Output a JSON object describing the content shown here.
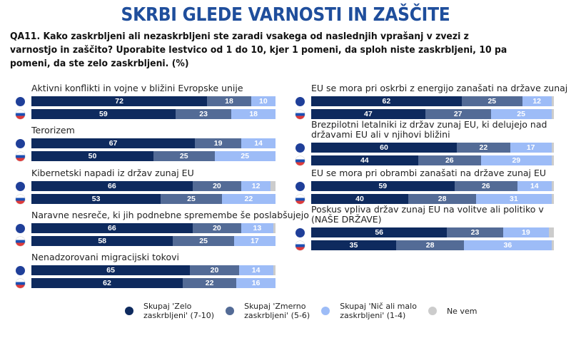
{
  "title": "SKRBI GLEDE VARNOSTI IN ZAŠČITE",
  "question": "QA11. Kako zaskrbljeni ali nezaskrbljeni ste zaradi vsakega od naslednjih vprašanj v zvezi z varnostjo in zaščito? Uporabite lestvico od 1 do 10, kjer 1 pomeni, da sploh niste zaskrbljeni, 10 pa pomeni, da ste zelo zaskrbljeni. (%)",
  "colors": {
    "very": "#0e2a5e",
    "moderate": "#536b96",
    "little": "#9dbcf7",
    "dontknow": "#cccccc"
  },
  "legend": [
    {
      "key": "very",
      "label_1": "Skupaj 'Zelo",
      "label_2": "zaskrbljeni' (7-10)"
    },
    {
      "key": "moderate",
      "label_1": "Skupaj 'Zmerno",
      "label_2": "zaskrbljeni' (5-6)"
    },
    {
      "key": "little",
      "label_1": "Skupaj 'Nič ali malo",
      "label_2": "zaskrbljeni' (1-4)"
    },
    {
      "key": "dontknow",
      "label_1": "Ne vem",
      "label_2": ""
    }
  ],
  "chart_data": {
    "type": "bar",
    "stacked": true,
    "orientation": "horizontal",
    "title": "SKRBI GLEDE VARNOSTI IN ZAŠČITE",
    "series_names": [
      "Skupaj 'Zelo zaskrbljeni' (7-10)",
      "Skupaj 'Zmerno zaskrbljeni' (5-6)",
      "Skupaj 'Nič ali malo zaskrbljeni' (1-4)",
      "Ne vem"
    ],
    "row_groups": [
      "EU",
      "Slovenija"
    ],
    "xlim": [
      0,
      100
    ],
    "legend_position": "bottom",
    "items": [
      {
        "label": "Aktivni konflikti in vojne v bližini Evropske unije",
        "EU": [
          72,
          18,
          10,
          0
        ],
        "SI": [
          59,
          23,
          18,
          0
        ]
      },
      {
        "label": "Terorizem",
        "EU": [
          67,
          19,
          14,
          0
        ],
        "SI": [
          50,
          25,
          25,
          0
        ]
      },
      {
        "label": "Kibernetski napadi iz držav zunaj EU",
        "EU": [
          66,
          20,
          12,
          2
        ],
        "SI": [
          53,
          25,
          22,
          0
        ]
      },
      {
        "label": "Naravne nesreče, ki jih podnebne spremembe še poslabšujejo",
        "EU": [
          66,
          20,
          13,
          1
        ],
        "SI": [
          58,
          25,
          17,
          0
        ]
      },
      {
        "label": "Nenadzorovani migracijski tokovi",
        "EU": [
          65,
          20,
          14,
          1
        ],
        "SI": [
          62,
          22,
          16,
          0
        ]
      },
      {
        "label": "EU se mora pri oskrbi z energijo zanašati na države zunaj EU",
        "EU": [
          62,
          25,
          12,
          1
        ],
        "SI": [
          47,
          27,
          25,
          1
        ]
      },
      {
        "label": "Brezpilotni letalniki iz držav zunaj EU, ki delujejo nad državami EU ali v njihovi bližini",
        "EU": [
          60,
          22,
          17,
          1
        ],
        "SI": [
          44,
          26,
          29,
          1
        ]
      },
      {
        "label": "EU se mora pri obrambi zanašati na države zunaj EU",
        "EU": [
          59,
          26,
          14,
          1
        ],
        "SI": [
          40,
          28,
          31,
          1
        ]
      },
      {
        "label": "Poskus vpliva držav zunaj EU na volitve ali politiko v (NAŠE DRŽAVE)",
        "EU": [
          56,
          23,
          19,
          2
        ],
        "SI": [
          35,
          28,
          36,
          1
        ]
      }
    ]
  }
}
